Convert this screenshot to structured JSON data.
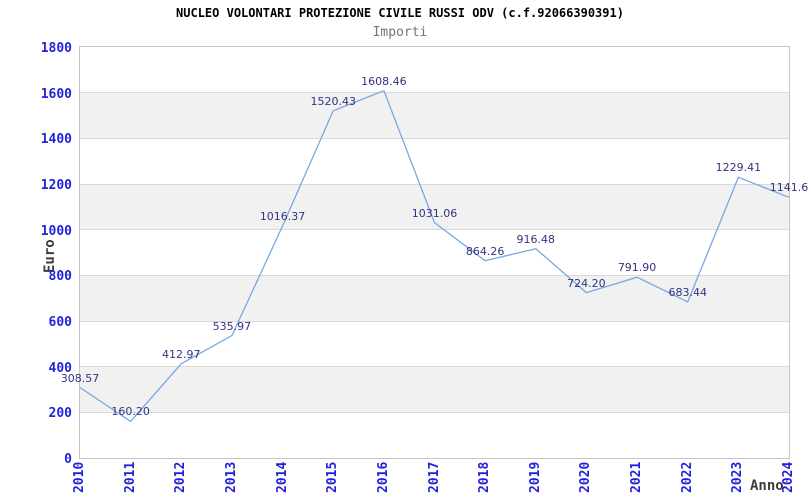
{
  "header": {
    "title": "NUCLEO VOLONTARI PROTEZIONE CIVILE RUSSI ODV (c.f.92066390391)",
    "subtitle": "Importi"
  },
  "chart_data": {
    "type": "line",
    "title": "NUCLEO VOLONTARI PROTEZIONE CIVILE RUSSI ODV (c.f.92066390391)",
    "subtitle": "Importi",
    "xlabel": "Anno",
    "ylabel": "Euro",
    "x": [
      "2010",
      "2011",
      "2012",
      "2013",
      "2014",
      "2015",
      "2016",
      "2017",
      "2018",
      "2019",
      "2020",
      "2021",
      "2022",
      "2023",
      "2024"
    ],
    "values": [
      308.57,
      160.2,
      412.97,
      535.97,
      1016.37,
      1520.43,
      1608.46,
      1031.06,
      864.26,
      916.48,
      724.2,
      791.9,
      683.44,
      1229.41,
      1141.6
    ],
    "point_labels": [
      "308.57",
      "160.20",
      "412.97",
      "535.97",
      "1016.37",
      "1520.43",
      "1608.46",
      "1031.06",
      "864.26",
      "916.48",
      "724.20",
      "791.90",
      "683.44",
      "1229.41",
      "1141.6"
    ],
    "ylim": [
      0,
      1800
    ],
    "ytick_step": 200,
    "grid": true,
    "alternating_bands": true,
    "legend": "none",
    "colors": {
      "line": "#76a9e2",
      "tick_label": "#2222dd",
      "point_label": "#333380",
      "band": "#f1f1f1",
      "grid": "#d9d9d9",
      "border": "#c6c6c6",
      "title": "#000000",
      "subtitle": "#757575",
      "axis_title": "#3d3d3d"
    }
  }
}
